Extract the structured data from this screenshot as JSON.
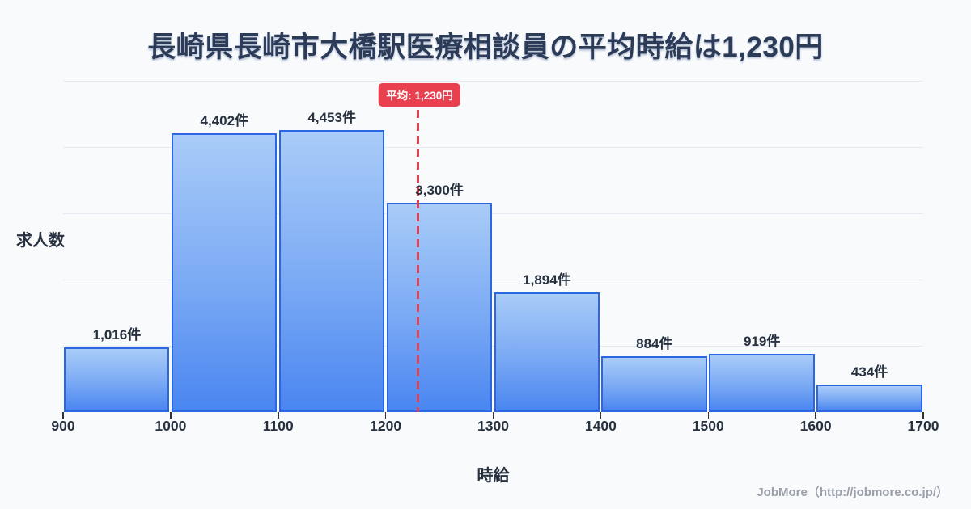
{
  "title": "長崎県長崎市大橋駅医療相談員の平均時給は1,230円",
  "chart_data": {
    "type": "bar",
    "subtype": "histogram",
    "title": "長崎県長崎市大橋駅医療相談員の平均時給は1,230円",
    "xlabel": "時給",
    "ylabel": "求人数",
    "bin_edges": [
      900,
      1000,
      1100,
      1200,
      1300,
      1400,
      1500,
      1600,
      1700
    ],
    "x_tick_labels": [
      "900",
      "1000",
      "1100",
      "1200",
      "1300",
      "1400",
      "1500",
      "1600",
      "1700"
    ],
    "values": [
      1016,
      4402,
      4453,
      3300,
      1894,
      884,
      919,
      434
    ],
    "bar_labels": [
      "1,016件",
      "4,402件",
      "4,453件",
      "3,300件",
      "1,894件",
      "884件",
      "919件",
      "434件"
    ],
    "xlim": [
      900,
      1700
    ],
    "ylim": [
      0,
      5230
    ],
    "grid": "horizontal-unlabeled",
    "legend_position": "none",
    "average_marker": {
      "value": 1230,
      "label": "平均: 1,230円"
    }
  },
  "colors": {
    "background": "#f8fafc",
    "title_text": "#2b3b58",
    "bar_fill_top": "#a9ccf8",
    "bar_fill_bottom": "#4a86f1",
    "bar_border": "#2b66e3",
    "average_red": "#e8404e",
    "gridline": "#e7eaf2",
    "axis_text": "#27313f",
    "credit_text": "#9aa0aa"
  },
  "footer": {
    "credit": "JobMore（http://jobmore.co.jp/）"
  }
}
